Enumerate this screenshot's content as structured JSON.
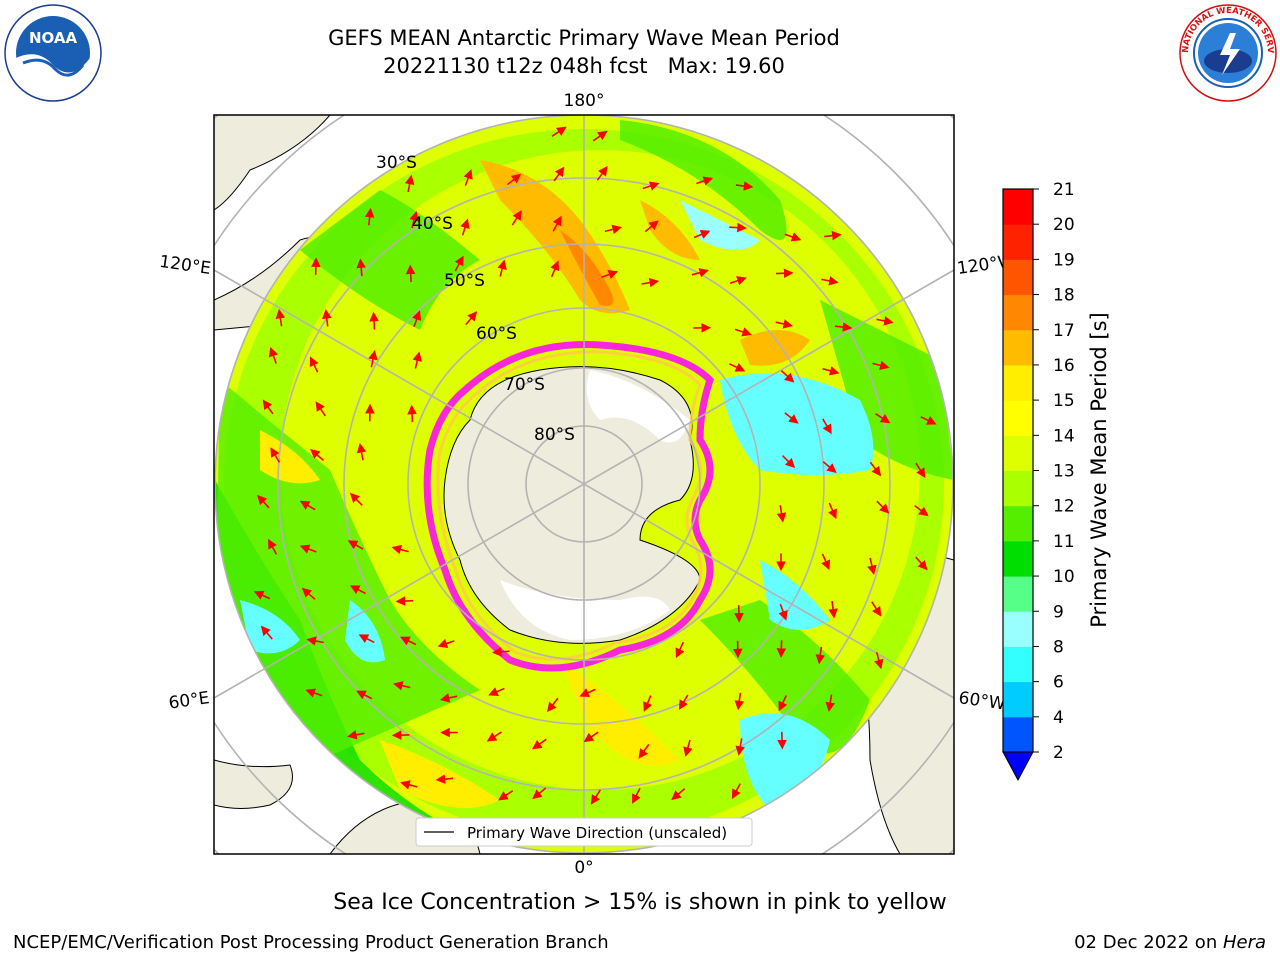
{
  "header": {
    "title_line1": "GEFS MEAN Antarctic Primary Wave Mean Period",
    "title_line2": "20221130 t12z 048h fcst   Max: 19.60"
  },
  "logos": {
    "left": {
      "icon": "noaa-logo-icon",
      "text": "NOAA"
    },
    "right": {
      "icon": "nws-logo-icon",
      "text": "NATIONAL WEATHER SERVICE"
    }
  },
  "map": {
    "longitude_labels": {
      "top": "180°",
      "bottom": "0°",
      "left_upper": "120°E",
      "left_lower": "60°E",
      "right_upper": "120°W",
      "right_lower": "60°W"
    },
    "latitude_labels": [
      "30°S",
      "40°S",
      "50°S",
      "60°S",
      "70°S",
      "80°S"
    ],
    "legend": {
      "label": "Primary Wave Direction (unscaled)"
    },
    "vector_color": "#ff0000",
    "ocean_color": "#f0f0f0",
    "land_color": "#eeecdc",
    "ice_color": "#ffffff",
    "ice_edge_colors": [
      "#ff00ff",
      "#ff66cc",
      "#ffcc44"
    ]
  },
  "colorbar": {
    "label": "Primary Wave Mean Period [s]",
    "ticks": [
      "2",
      "4",
      "6",
      "8",
      "9",
      "10",
      "11",
      "12",
      "13",
      "14",
      "15",
      "16",
      "17",
      "18",
      "19",
      "20",
      "21"
    ],
    "colors_bottom_to_top": [
      "#0055ff",
      "#00ccff",
      "#33ffff",
      "#99ffff",
      "#55ff88",
      "#00dd00",
      "#55ee00",
      "#aaff00",
      "#ddff00",
      "#ffff00",
      "#ffee00",
      "#ffbb00",
      "#ff8800",
      "#ff5500",
      "#ff2200",
      "#ff0000"
    ],
    "extend_color": "#0000ff"
  },
  "caption": "Sea Ice Concentration > 15% is shown in pink to yellow",
  "footer": {
    "left": "NCEP/EMC/Verification Post Processing Product Generation Branch",
    "right_date": "02 Dec 2022 on ",
    "right_host": "Hera"
  }
}
